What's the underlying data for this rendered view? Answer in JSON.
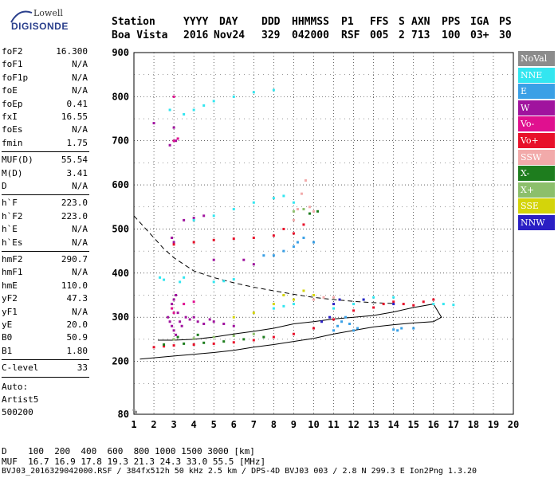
{
  "logo": {
    "line1": "Lowell",
    "line2": "DIGISONDE"
  },
  "header": {
    "labels": [
      "Station",
      "YYYY",
      "DAY",
      "DDD",
      "HHMMSS",
      "P1",
      "FFS",
      "S",
      "AXN",
      "PPS",
      "IGA",
      "PS"
    ],
    "values": [
      "Boa Vista",
      "2016",
      "Nov24",
      "329",
      "042000",
      "RSF",
      "005",
      "2",
      "713",
      "100",
      "03+",
      "30"
    ]
  },
  "params": {
    "group1": [
      {
        "name": "foF2",
        "value": "16.300"
      },
      {
        "name": "foF1",
        "value": "N/A"
      },
      {
        "name": "foF1p",
        "value": "N/A"
      },
      {
        "name": "foE",
        "value": "N/A"
      },
      {
        "name": "foEp",
        "value": "0.41"
      },
      {
        "name": "fxI",
        "value": "16.55"
      },
      {
        "name": "foEs",
        "value": "N/A"
      },
      {
        "name": "fmin",
        "value": "1.75"
      }
    ],
    "group2": [
      {
        "name": "MUF(D)",
        "value": "55.54"
      },
      {
        "name": "M(D)",
        "value": "3.41"
      },
      {
        "name": "D",
        "value": "N/A"
      }
    ],
    "group3": [
      {
        "name": "h`F",
        "value": "223.0"
      },
      {
        "name": "h`F2",
        "value": "223.0"
      },
      {
        "name": "h`E",
        "value": "N/A"
      },
      {
        "name": "h`Es",
        "value": "N/A"
      }
    ],
    "group4": [
      {
        "name": "hmF2",
        "value": "290.7"
      },
      {
        "name": "hmF1",
        "value": "N/A"
      },
      {
        "name": "hmE",
        "value": "110.0"
      },
      {
        "name": "yF2",
        "value": "47.3"
      },
      {
        "name": "yF1",
        "value": "N/A"
      },
      {
        "name": "yE",
        "value": "20.0"
      },
      {
        "name": "B0",
        "value": "50.9"
      },
      {
        "name": "B1",
        "value": "1.80"
      }
    ],
    "group5": [
      {
        "name": "C-level",
        "value": "33"
      }
    ],
    "auto": [
      "Auto:",
      "Artist5",
      "500200"
    ]
  },
  "legend": [
    {
      "label": "NoVal",
      "color": "#8c8c8c"
    },
    {
      "label": "NNE",
      "color": "#33e6f0"
    },
    {
      "label": "E",
      "color": "#3aa0e6"
    },
    {
      "label": "W",
      "color": "#a0139e"
    },
    {
      "label": "Vo-",
      "color": "#e0108f"
    },
    {
      "label": "Vo+",
      "color": "#e8102a"
    },
    {
      "label": "SSW",
      "color": "#f2aaaa"
    },
    {
      "label": "X-",
      "color": "#1e7d1e"
    },
    {
      "label": "X+",
      "color": "#8cbf6b"
    },
    {
      "label": "SSE",
      "color": "#d4d40a"
    },
    {
      "label": "NNW",
      "color": "#2a1fc4"
    }
  ],
  "footer": {
    "d_line": "D    100  200  400  600  800 1000 1500 3000 [km]",
    "muf_line": "MUF  16.7 16.9 17.8 19.3 21.3 24.3 33.0 55.5 [MHz]",
    "file_line": "BVJ03_2016329042000.RSF / 384fx512h 50 kHz 2.5 km / DPS-4D BVJ03 003 / 2.8 N 299.3 E Ion2Png 1.3.20"
  },
  "chart_data": {
    "type": "scatter",
    "xlim": [
      1,
      20
    ],
    "ylim": [
      80,
      900
    ],
    "x_ticks": [
      1,
      2,
      3,
      4,
      5,
      6,
      7,
      8,
      9,
      10,
      11,
      12,
      13,
      14,
      15,
      16,
      17,
      18,
      19,
      20
    ],
    "y_ticks": [
      80,
      200,
      300,
      400,
      500,
      600,
      700,
      800,
      900
    ],
    "grid": true,
    "legend_position": "right",
    "series": [
      {
        "name": "W",
        "color": "#a0139e",
        "points": [
          [
            2.7,
            300
          ],
          [
            2.8,
            290
          ],
          [
            2.9,
            280
          ],
          [
            3.0,
            270
          ],
          [
            3.1,
            260
          ],
          [
            3.2,
            310
          ],
          [
            2.9,
            330
          ],
          [
            3.0,
            340
          ],
          [
            3.1,
            350
          ],
          [
            3.3,
            290
          ],
          [
            3.4,
            280
          ],
          [
            3.6,
            300
          ],
          [
            3.8,
            295
          ],
          [
            4.0,
            300
          ],
          [
            4.2,
            290
          ],
          [
            4.5,
            285
          ],
          [
            4.8,
            295
          ],
          [
            5.0,
            290
          ],
          [
            5.5,
            285
          ],
          [
            6.0,
            280
          ],
          [
            2.9,
            480
          ],
          [
            3.0,
            470
          ],
          [
            3.5,
            520
          ],
          [
            4.0,
            525
          ],
          [
            4.5,
            530
          ],
          [
            3.0,
            730
          ],
          [
            3.1,
            700
          ],
          [
            2.8,
            690
          ],
          [
            2.0,
            740
          ],
          [
            5.0,
            430
          ],
          [
            6.5,
            430
          ],
          [
            7.0,
            420
          ]
        ]
      },
      {
        "name": "Vo-",
        "color": "#e0108f",
        "points": [
          [
            2.9,
            320
          ],
          [
            3.0,
            310
          ],
          [
            3.5,
            330
          ],
          [
            4.0,
            335
          ],
          [
            3.0,
            700
          ],
          [
            3.2,
            705
          ],
          [
            3.0,
            800
          ]
        ]
      },
      {
        "name": "Vo+",
        "color": "#e8102a",
        "points": [
          [
            2.0,
            232
          ],
          [
            2.5,
            234
          ],
          [
            3.0,
            236
          ],
          [
            4.0,
            238
          ],
          [
            5.0,
            240
          ],
          [
            6.0,
            243
          ],
          [
            7.0,
            248
          ],
          [
            8.0,
            255
          ],
          [
            9.0,
            262
          ],
          [
            10.0,
            275
          ],
          [
            11.0,
            295
          ],
          [
            12.0,
            315
          ],
          [
            13.0,
            322
          ],
          [
            13.5,
            330
          ],
          [
            14.0,
            335
          ],
          [
            14.5,
            330
          ],
          [
            15.0,
            327
          ],
          [
            15.5,
            335
          ],
          [
            16.0,
            340
          ],
          [
            3.0,
            465
          ],
          [
            4.0,
            470
          ],
          [
            5.0,
            475
          ],
          [
            6.0,
            478
          ],
          [
            7.0,
            480
          ],
          [
            8.0,
            485
          ],
          [
            9.0,
            490
          ],
          [
            8.5,
            500
          ],
          [
            9.5,
            510
          ]
        ]
      },
      {
        "name": "NNE",
        "color": "#33e6f0",
        "points": [
          [
            2.3,
            390
          ],
          [
            2.5,
            385
          ],
          [
            3.3,
            380
          ],
          [
            3.5,
            390
          ],
          [
            5.0,
            380
          ],
          [
            5.5,
            382
          ],
          [
            6.0,
            386
          ],
          [
            8.0,
            320
          ],
          [
            8.5,
            325
          ],
          [
            9.0,
            330
          ],
          [
            11.0,
            320
          ],
          [
            12.0,
            330
          ],
          [
            12.5,
            340
          ],
          [
            13.0,
            345
          ],
          [
            14.0,
            345
          ],
          [
            16.0,
            330
          ],
          [
            16.5,
            330
          ],
          [
            17.0,
            328
          ],
          [
            4.0,
            520
          ],
          [
            5.0,
            530
          ],
          [
            6.0,
            545
          ],
          [
            7.0,
            560
          ],
          [
            8.0,
            570
          ],
          [
            8.5,
            575
          ],
          [
            9.0,
            560
          ],
          [
            3.5,
            760
          ],
          [
            4.0,
            770
          ],
          [
            4.5,
            780
          ],
          [
            5.0,
            790
          ],
          [
            6.0,
            800
          ],
          [
            7.0,
            810
          ],
          [
            8.0,
            815
          ],
          [
            2.8,
            770
          ]
        ]
      },
      {
        "name": "E",
        "color": "#3aa0e6",
        "points": [
          [
            11.0,
            270
          ],
          [
            11.2,
            280
          ],
          [
            11.4,
            290
          ],
          [
            11.6,
            300
          ],
          [
            11.8,
            285
          ],
          [
            12.0,
            270
          ],
          [
            12.2,
            275
          ],
          [
            14.0,
            272
          ],
          [
            14.2,
            270
          ],
          [
            14.4,
            275
          ],
          [
            15.0,
            275
          ],
          [
            8.0,
            440
          ],
          [
            8.5,
            450
          ],
          [
            9.0,
            460
          ],
          [
            9.2,
            470
          ],
          [
            9.5,
            480
          ],
          [
            10.0,
            470
          ],
          [
            7.5,
            440
          ]
        ]
      },
      {
        "name": "NNW",
        "color": "#2a1fc4",
        "points": [
          [
            10.4,
            290
          ],
          [
            10.8,
            300
          ],
          [
            11.0,
            330
          ],
          [
            11.3,
            340
          ],
          [
            12.5,
            340
          ],
          [
            14.0,
            330
          ]
        ]
      },
      {
        "name": "SSW",
        "color": "#f2aaaa",
        "points": [
          [
            9.0,
            520
          ],
          [
            9.2,
            545
          ],
          [
            9.4,
            580
          ],
          [
            9.6,
            610
          ],
          [
            9.8,
            550
          ],
          [
            10.0,
            340
          ],
          [
            10.5,
            345
          ],
          [
            11.0,
            345
          ],
          [
            10.0,
            540
          ]
        ]
      },
      {
        "name": "X-",
        "color": "#1e7d1e",
        "points": [
          [
            2.5,
            238
          ],
          [
            3.5,
            240
          ],
          [
            4.5,
            242
          ],
          [
            5.5,
            245
          ],
          [
            6.5,
            250
          ],
          [
            7.5,
            255
          ],
          [
            10.2,
            540
          ],
          [
            9.8,
            535
          ],
          [
            3.2,
            255
          ],
          [
            4.2,
            260
          ]
        ]
      },
      {
        "name": "X+",
        "color": "#8cbf6b",
        "points": [
          [
            3.0,
            250
          ],
          [
            4.0,
            252
          ],
          [
            5.0,
            255
          ],
          [
            6.0,
            258
          ],
          [
            7.0,
            262
          ],
          [
            9.0,
            540
          ],
          [
            9.5,
            545
          ]
        ]
      },
      {
        "name": "SSE",
        "color": "#d4d40a",
        "points": [
          [
            6.0,
            300
          ],
          [
            7.0,
            310
          ],
          [
            8.0,
            330
          ],
          [
            9.0,
            340
          ],
          [
            9.5,
            360
          ],
          [
            10.0,
            350
          ],
          [
            8.5,
            350
          ]
        ]
      },
      {
        "name": "NoVal",
        "color": "#8c8c8c",
        "points": [
          [
            1.0,
            90
          ],
          [
            1.1,
            85
          ]
        ]
      }
    ],
    "lines": {
      "solid_profile": [
        [
          1.3,
          205
        ],
        [
          2,
          208
        ],
        [
          3,
          212
        ],
        [
          4,
          216
        ],
        [
          5,
          220
        ],
        [
          6,
          225
        ],
        [
          7,
          232
        ],
        [
          8,
          238
        ],
        [
          9,
          245
        ],
        [
          10,
          252
        ],
        [
          11,
          262
        ],
        [
          12,
          270
        ],
        [
          13,
          278
        ],
        [
          14,
          283
        ],
        [
          15,
          287
        ],
        [
          16,
          290
        ],
        [
          16.4,
          300
        ],
        [
          16,
          330
        ],
        [
          15,
          322
        ],
        [
          14,
          312
        ],
        [
          13,
          304
        ],
        [
          12,
          300
        ],
        [
          11,
          296
        ],
        [
          10,
          290
        ],
        [
          9,
          285
        ],
        [
          8,
          275
        ],
        [
          7,
          268
        ],
        [
          6,
          262
        ],
        [
          5,
          255
        ],
        [
          4,
          250
        ],
        [
          3,
          248
        ],
        [
          2.2,
          248
        ]
      ],
      "dashed_muf": [
        [
          1,
          530
        ],
        [
          1.5,
          505
        ],
        [
          2,
          480
        ],
        [
          2.5,
          455
        ],
        [
          3,
          435
        ],
        [
          3.5,
          420
        ],
        [
          4,
          405
        ],
        [
          5,
          390
        ],
        [
          6,
          378
        ],
        [
          7,
          368
        ],
        [
          8,
          360
        ],
        [
          9,
          352
        ],
        [
          10,
          345
        ],
        [
          11,
          340
        ],
        [
          12,
          336
        ],
        [
          13,
          333
        ],
        [
          14,
          331
        ]
      ]
    }
  }
}
